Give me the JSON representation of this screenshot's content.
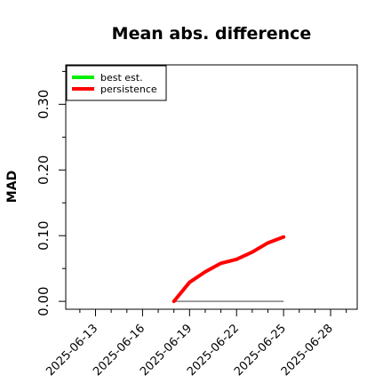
{
  "chart_data": {
    "type": "line",
    "title": "Mean abs. difference",
    "xlabel": "",
    "ylabel": "MAD",
    "x_ticks": [
      "2025-06-13",
      "2025-06-16",
      "2025-06-19",
      "2025-06-22",
      "2025-06-25",
      "2025-06-28"
    ],
    "x_tick_days": [
      13,
      16,
      19,
      22,
      25,
      28
    ],
    "xlim_days": [
      11.1,
      29.7
    ],
    "x_month": "2025-06",
    "y_ticks": [
      "0.00",
      "0.10",
      "0.20",
      "0.30"
    ],
    "y_tick_values": [
      0.0,
      0.1,
      0.2,
      0.3
    ],
    "y_minor_tick_values": [
      0.05,
      0.15,
      0.25,
      0.35
    ],
    "ylim": [
      -0.012,
      0.36
    ],
    "grid": false,
    "legend_position": "top-left",
    "series": [
      {
        "name": "best est.",
        "color": "#00ee00",
        "x_days": [
          18,
          19,
          20,
          21,
          22,
          23,
          24,
          25
        ],
        "values": [
          0,
          0,
          0,
          0,
          0,
          0,
          0,
          0
        ]
      },
      {
        "name": "persistence",
        "color": "#ff0000",
        "x_days": [
          18,
          19,
          20,
          21,
          22,
          23,
          24,
          25
        ],
        "values": [
          0.0,
          0.029,
          0.045,
          0.058,
          0.064,
          0.075,
          0.089,
          0.098
        ]
      }
    ],
    "reference_line": {
      "color": "#808080",
      "y": 0,
      "x_days": [
        18,
        25
      ]
    }
  }
}
